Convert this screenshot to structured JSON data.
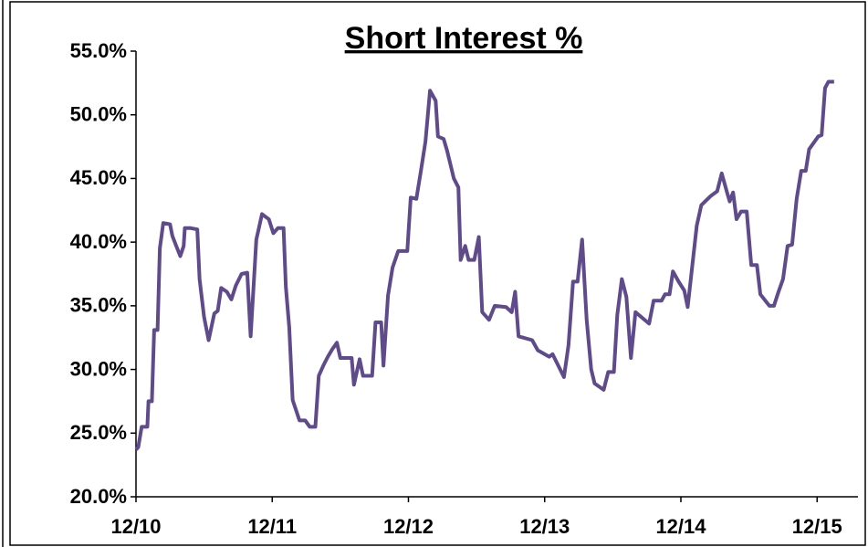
{
  "chart_data": {
    "type": "line",
    "title": "Short Interest %",
    "x": [
      0.0,
      0.2,
      0.5,
      1.0,
      1.1,
      1.4,
      1.6,
      1.9,
      2.1,
      2.4,
      3.0,
      3.2,
      3.5,
      3.9,
      4.2,
      4.3,
      4.8,
      5.4,
      5.6,
      6.0,
      6.4,
      6.9,
      7.2,
      7.5,
      8.0,
      8.4,
      8.8,
      9.3,
      9.8,
      10.1,
      10.6,
      11.1,
      11.7,
      12.1,
      12.5,
      13.0,
      13.2,
      13.5,
      13.8,
      14.4,
      14.9,
      15.3,
      15.8,
      16.1,
      16.5,
      16.9,
      17.3,
      17.7,
      18.0,
      19.0,
      19.2,
      19.7,
      20.0,
      20.8,
      21.1,
      21.6,
      21.8,
      22.2,
      22.6,
      23.1,
      23.9,
      24.2,
      24.7,
      25.1,
      25.5,
      25.9,
      26.4,
      26.6,
      27.1,
      27.4,
      28.0,
      28.4,
      28.6,
      29.0,
      29.3,
      29.8,
      30.2,
      30.5,
      31.1,
      31.6,
      32.6,
      33.1,
      33.4,
      33.7,
      34.9,
      35.4,
      36.4,
      36.7,
      37.2,
      37.7,
      38.1,
      38.5,
      38.9,
      39.3,
      39.7,
      40.1,
      40.4,
      41.2,
      41.6,
      42.1,
      42.4,
      42.8,
      43.2,
      43.6,
      44.0,
      45.2,
      45.6,
      46.3,
      46.6,
      47.0,
      47.3,
      47.8,
      48.3,
      48.6,
      49.0,
      49.4,
      49.8,
      50.6,
      51.2,
      51.6,
      52.1,
      52.3,
      52.6,
      52.9,
      53.3,
      53.8,
      54.2,
      54.7,
      55.0,
      55.8,
      56.2,
      56.6,
      57.0,
      57.4,
      57.8,
      58.2,
      58.6,
      59.0,
      59.3,
      60.1,
      60.4,
      60.7,
      61.0,
      61.5
    ],
    "series": [
      {
        "color": "#5f4b8b",
        "values": [
          23.7,
          23.9,
          25.5,
          25.5,
          27.5,
          27.5,
          33.1,
          33.1,
          39.5,
          41.5,
          41.4,
          40.5,
          39.8,
          38.9,
          39.7,
          41.1,
          41.1,
          41.0,
          37.1,
          34.1,
          32.3,
          34.4,
          34.6,
          36.4,
          36.1,
          35.5,
          36.6,
          37.5,
          37.6,
          32.6,
          40.2,
          42.2,
          41.8,
          40.7,
          41.1,
          41.1,
          36.5,
          33.3,
          27.6,
          26.0,
          26.0,
          25.5,
          25.5,
          29.5,
          30.3,
          31.0,
          31.6,
          32.1,
          30.9,
          30.9,
          28.8,
          30.8,
          29.5,
          29.5,
          33.7,
          33.7,
          30.3,
          35.8,
          38.0,
          39.3,
          39.3,
          43.5,
          43.4,
          45.6,
          47.9,
          51.9,
          51.1,
          48.3,
          48.1,
          47.2,
          45.0,
          44.3,
          38.6,
          39.7,
          38.6,
          38.6,
          40.4,
          34.5,
          33.9,
          35.0,
          34.9,
          34.5,
          36.1,
          32.6,
          32.3,
          31.5,
          31.0,
          31.2,
          30.3,
          29.4,
          31.9,
          36.9,
          36.9,
          40.2,
          33.9,
          30.0,
          28.9,
          28.4,
          29.8,
          29.8,
          34.3,
          37.1,
          35.7,
          30.9,
          34.5,
          33.6,
          35.4,
          35.4,
          35.9,
          35.9,
          37.7,
          36.9,
          36.2,
          34.9,
          38.1,
          41.3,
          42.9,
          43.6,
          44.0,
          45.4,
          43.8,
          43.2,
          43.9,
          41.8,
          42.4,
          42.4,
          38.2,
          38.2,
          35.9,
          35.0,
          35.0,
          36.1,
          37.1,
          39.7,
          39.8,
          43.4,
          45.6,
          45.6,
          47.3,
          48.3,
          48.4,
          52.1,
          52.6,
          52.6
        ]
      }
    ],
    "xlim": [
      0,
      63.6
    ],
    "xticks": [
      {
        "value": 0,
        "label": "12/10"
      },
      {
        "value": 12,
        "label": "12/11"
      },
      {
        "value": 24,
        "label": "12/12"
      },
      {
        "value": 36,
        "label": "12/13"
      },
      {
        "value": 48,
        "label": "12/14"
      },
      {
        "value": 60,
        "label": "12/15"
      }
    ],
    "ylim": [
      20,
      55
    ],
    "yticks": [
      {
        "value": 20,
        "label": "20.0%"
      },
      {
        "value": 25,
        "label": "25.0%"
      },
      {
        "value": 30,
        "label": "30.0%"
      },
      {
        "value": 35,
        "label": "35.0%"
      },
      {
        "value": 40,
        "label": "40.0%"
      },
      {
        "value": 45,
        "label": "45.0%"
      },
      {
        "value": 50,
        "label": "50.0%"
      },
      {
        "value": 55,
        "label": "55.0%"
      }
    ],
    "grid": false
  }
}
